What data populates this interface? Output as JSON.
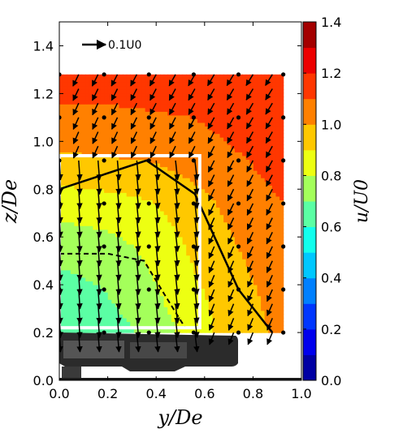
{
  "chart_data": {
    "type": "contour-quiver",
    "xlabel": "y/De",
    "ylabel": "z/De",
    "xlim": [
      0.0,
      1.0
    ],
    "ylim": [
      0.0,
      1.5
    ],
    "x_ticks": [
      "0.0",
      "0.2",
      "0.4",
      "0.6",
      "0.8",
      "1.0"
    ],
    "y_ticks": [
      "0.0",
      "0.2",
      "0.4",
      "0.6",
      "0.8",
      "1.0",
      "1.2",
      "1.4"
    ],
    "colorbar": {
      "label": "u/U0",
      "range": [
        0.0,
        1.4
      ],
      "ticks": [
        "0.0",
        "0.2",
        "0.4",
        "0.6",
        "0.8",
        "1.0",
        "1.2",
        "1.4"
      ],
      "colormap": "jet"
    },
    "reference_vector": {
      "label": "0.1U0",
      "magnitude": 0.1
    },
    "grid_y": [
      0.0,
      0.185,
      0.37,
      0.555,
      0.74,
      0.925
    ],
    "grid_z": [
      0.2,
      0.38,
      0.56,
      0.74,
      0.92,
      1.1,
      1.28
    ],
    "u_field": [
      [
        0.62,
        0.65,
        0.72,
        0.85,
        0.96,
        1.02
      ],
      [
        0.66,
        0.7,
        0.78,
        0.88,
        0.97,
        1.04
      ],
      [
        0.74,
        0.76,
        0.82,
        0.92,
        1.0,
        1.07
      ],
      [
        0.84,
        0.86,
        0.89,
        0.96,
        1.04,
        1.1
      ],
      [
        0.98,
        0.99,
        1.0,
        1.04,
        1.09,
        1.14
      ],
      [
        1.08,
        1.08,
        1.09,
        1.1,
        1.14,
        1.18
      ],
      [
        1.14,
        1.14,
        1.15,
        1.16,
        1.18,
        1.2
      ]
    ],
    "contour_solid": {
      "level": 0.9,
      "points": [
        [
          0.0,
          0.8
        ],
        [
          0.36,
          0.92
        ],
        [
          0.56,
          0.78
        ],
        [
          0.74,
          0.38
        ],
        [
          0.88,
          0.2
        ]
      ]
    },
    "contour_dashed": {
      "level": 0.7,
      "points": [
        [
          0.0,
          0.53
        ],
        [
          0.2,
          0.53
        ],
        [
          0.35,
          0.5
        ],
        [
          0.44,
          0.35
        ],
        [
          0.52,
          0.22
        ]
      ]
    },
    "box": {
      "y0": 0.0,
      "y1": 0.58,
      "z0": 0.22,
      "z1": 0.94
    },
    "vector_field": {
      "y": [
        0.0,
        0.08,
        0.16,
        0.24,
        0.32,
        0.4,
        0.48,
        0.56,
        0.64,
        0.72,
        0.8,
        0.88
      ],
      "z": [
        0.2,
        0.26,
        0.32,
        0.38,
        0.44,
        0.5,
        0.56,
        0.62,
        0.68,
        0.74,
        0.8,
        0.86,
        0.92,
        0.98,
        1.04,
        1.1,
        1.16,
        1.22,
        1.28
      ]
    }
  }
}
